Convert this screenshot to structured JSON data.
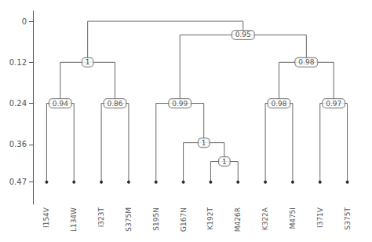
{
  "chart_data": {
    "type": "dendrogram",
    "categories": [
      "I154V",
      "L134W",
      "I323T",
      "S375M",
      "S195N",
      "G167N",
      "K192T",
      "M426R",
      "K322A",
      "M475I",
      "I371V",
      "S375T"
    ],
    "leaf_height": 0.47,
    "merges": [
      {
        "left": "I154V",
        "right": "L134W",
        "height": 0.24,
        "label": "0.94"
      },
      {
        "left": "I323T",
        "right": "S375M",
        "height": 0.24,
        "label": "0.86"
      },
      {
        "left": 0,
        "right": 1,
        "height": 0.12,
        "label": "1"
      },
      {
        "left": "K192T",
        "right": "M426R",
        "height": 0.41,
        "label": "1"
      },
      {
        "left": "G167N",
        "right": 3,
        "height": 0.355,
        "label": "1"
      },
      {
        "left": "S195N",
        "right": 4,
        "height": 0.24,
        "label": "0.99"
      },
      {
        "left": "K322A",
        "right": "M475I",
        "height": 0.24,
        "label": "0.98"
      },
      {
        "left": "I371V",
        "right": "S375T",
        "height": 0.24,
        "label": "0.97"
      },
      {
        "left": 6,
        "right": 7,
        "height": 0.12,
        "label": "0.98"
      },
      {
        "left": 5,
        "right": 8,
        "height": 0.04,
        "label": "0.95"
      },
      {
        "left": 2,
        "right": 9,
        "height": 0.0
      }
    ],
    "color": "#666666",
    "ylim": [
      0.535,
      -0.03
    ],
    "yticks": [
      0.0,
      0.12,
      0.24,
      0.36,
      0.47
    ],
    "grid": false
  }
}
